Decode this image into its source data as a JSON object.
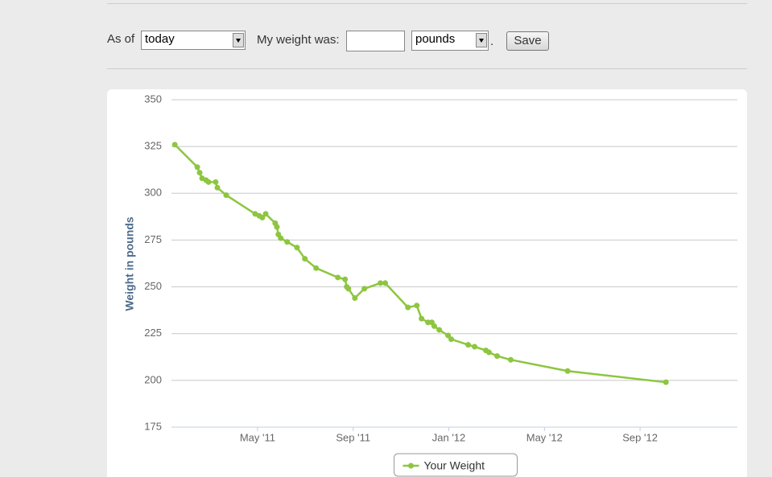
{
  "form": {
    "as_of_label": "As of",
    "date_option": "today",
    "weight_label": "My weight was:",
    "unit_option": "pounds",
    "period": ".",
    "save_button": "Save"
  },
  "chart_data": {
    "type": "line",
    "y_label": "Weight in pounds",
    "legend": "bottom",
    "grid": true,
    "xlim": [
      0.4,
      24.07
    ],
    "xticks": [
      {
        "value": 4,
        "label": "May '11"
      },
      {
        "value": 8,
        "label": "Sep '11"
      },
      {
        "value": 12,
        "label": "Jan '12"
      },
      {
        "value": 16,
        "label": "May '12"
      },
      {
        "value": 20,
        "label": "Sep '12"
      }
    ],
    "ylim": [
      175,
      350
    ],
    "yticks": [
      175,
      200,
      225,
      250,
      275,
      300,
      325,
      350
    ],
    "series": [
      {
        "name": "Your Weight",
        "color": "#8dc63f",
        "x": [
          0.54,
          1.48,
          1.58,
          1.68,
          1.85,
          1.95,
          2.25,
          2.32,
          2.69,
          3.9,
          4.07,
          4.2,
          4.34,
          4.74,
          4.81,
          4.87,
          4.97,
          5.24,
          5.65,
          5.98,
          6.45,
          7.36,
          7.66,
          7.73,
          7.8,
          8.07,
          8.47,
          9.14,
          9.34,
          10.29,
          10.66,
          10.86,
          11.13,
          11.29,
          11.39,
          11.6,
          11.97,
          12.1,
          12.81,
          13.08,
          13.55,
          13.68,
          14.02,
          14.59,
          16.97,
          21.08
        ],
        "values": [
          326,
          314,
          311,
          308,
          307,
          306,
          306,
          303,
          299,
          289,
          288,
          287,
          289,
          284,
          282,
          278,
          276,
          274,
          271,
          265,
          260,
          255,
          254,
          250,
          249,
          244,
          249,
          252,
          252,
          239,
          240,
          233,
          231,
          231,
          229,
          227,
          224,
          222,
          219,
          218,
          216,
          215,
          213,
          211,
          205,
          199
        ]
      }
    ]
  }
}
